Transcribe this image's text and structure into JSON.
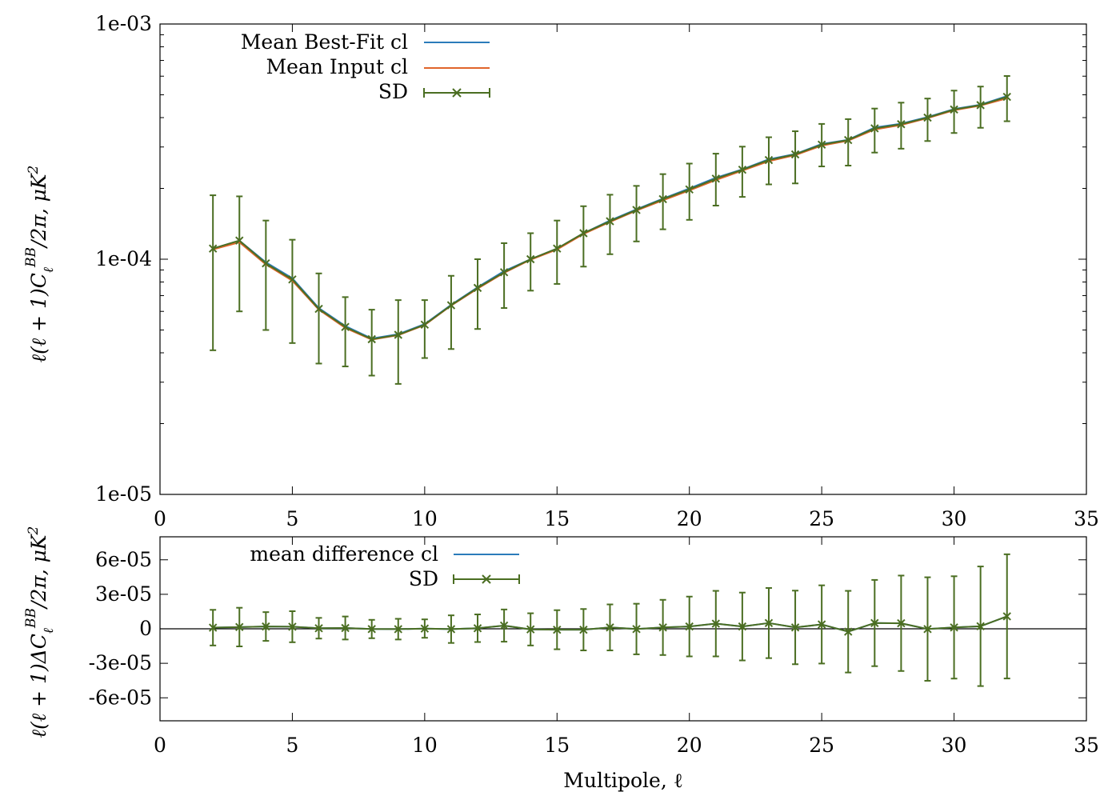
{
  "chart_data": [
    {
      "type": "line",
      "log_y": true,
      "xlim": [
        0,
        35
      ],
      "ylim": [
        1e-05,
        0.001
      ],
      "x_ticks": [
        0,
        5,
        10,
        15,
        20,
        25,
        30,
        35
      ],
      "x_tick_labels": [
        "0",
        "5",
        "10",
        "15",
        "20",
        "25",
        "30",
        "35"
      ],
      "y_ticks": [
        1e-05,
        0.0001,
        0.001
      ],
      "y_tick_labels": [
        "1e-05",
        "1e-04",
        "1e-03"
      ],
      "ylabel": "ℓ(ℓ+1)C_ℓ^BB/2π, μK²",
      "legend_position": "top-left",
      "grid": false,
      "x": [
        2,
        3,
        4,
        5,
        6,
        7,
        8,
        9,
        10,
        11,
        12,
        13,
        14,
        15,
        16,
        17,
        18,
        19,
        20,
        21,
        22,
        23,
        24,
        25,
        26,
        27,
        28,
        29,
        30,
        31,
        32
      ],
      "series": [
        {
          "name": "Mean Best-Fit cl",
          "color": "#2b7bba",
          "values": [
            0.000111,
            0.00012,
            9.7e-05,
            8.3e-05,
            6.2e-05,
            5.2e-05,
            4.6e-05,
            4.8e-05,
            5.3e-05,
            6.4e-05,
            7.6e-05,
            8.9e-05,
            0.0001,
            0.000111,
            0.000129,
            0.000146,
            0.000163,
            0.000181,
            0.0002,
            0.000222,
            0.000241,
            0.000266,
            0.00028,
            0.000309,
            0.000322,
            0.000363,
            0.000377,
            0.000402,
            0.000435,
            0.000454,
            0.000494
          ]
        },
        {
          "name": "Mean Input cl",
          "color": "#e0652a",
          "values": [
            0.00011,
            0.000118,
            9.5e-05,
            8.1e-05,
            6.1e-05,
            5.1e-05,
            4.55e-05,
            4.75e-05,
            5.25e-05,
            6.35e-05,
            7.5e-05,
            8.75e-05,
            9.95e-05,
            0.00011,
            0.000128,
            0.000144,
            0.000161,
            0.000178,
            0.000196,
            0.000217,
            0.000238,
            0.000261,
            0.000277,
            0.000304,
            0.000319,
            0.000356,
            0.000372,
            0.000398,
            0.00043,
            0.00045,
            0.000483
          ]
        },
        {
          "name": "SD",
          "color": "#4b6e22",
          "marker": "x",
          "values": [
            0.000111,
            0.00012,
            9.6e-05,
            8.2e-05,
            6.15e-05,
            5.15e-05,
            4.57e-05,
            4.77e-05,
            5.27e-05,
            6.37e-05,
            7.55e-05,
            8.8e-05,
            0.0001,
            0.000111,
            0.000129,
            0.000145,
            0.000162,
            0.00018,
            0.000198,
            0.00022,
            0.00024,
            0.000264,
            0.000279,
            0.000307,
            0.000321,
            0.00036,
            0.000375,
            0.0004,
            0.000433,
            0.000452,
            0.00049
          ],
          "lower": [
            4.1e-05,
            6e-05,
            5e-05,
            4.4e-05,
            3.6e-05,
            3.5e-05,
            3.2e-05,
            2.95e-05,
            3.8e-05,
            4.15e-05,
            5.05e-05,
            6.2e-05,
            7.35e-05,
            7.85e-05,
            9.3e-05,
            0.000105,
            0.000119,
            0.000134,
            0.000147,
            0.000169,
            0.000184,
            0.000208,
            0.00021,
            0.000248,
            0.00025,
            0.000284,
            0.000295,
            0.000318,
            0.000344,
            0.000362,
            0.000386
          ],
          "upper": [
            0.000187,
            0.000185,
            0.000146,
            0.000121,
            8.7e-05,
            6.9e-05,
            6.1e-05,
            6.7e-05,
            6.7e-05,
            8.5e-05,
            0.0001,
            0.000117,
            0.000129,
            0.000146,
            0.000168,
            0.000188,
            0.000205,
            0.00023,
            0.000255,
            0.000281,
            0.000301,
            0.00033,
            0.00035,
            0.000376,
            0.000394,
            0.000437,
            0.000463,
            0.000482,
            0.000521,
            0.000542,
            0.000601
          ]
        }
      ]
    },
    {
      "type": "line",
      "log_y": false,
      "xlim": [
        0,
        35
      ],
      "ylim": [
        -8e-05,
        8e-05
      ],
      "x_ticks": [
        0,
        5,
        10,
        15,
        20,
        25,
        30,
        35
      ],
      "x_tick_labels": [
        "0",
        "5",
        "10",
        "15",
        "20",
        "25",
        "30",
        "35"
      ],
      "y_ticks": [
        6e-05,
        3e-05,
        0,
        -3e-05,
        -6e-05
      ],
      "y_tick_labels": [
        "6e-05",
        "3e-05",
        "0",
        "-3e-05",
        "-6e-05"
      ],
      "xlabel": "Multipole, ℓ",
      "ylabel": "ℓ(ℓ+1)ΔC_ℓ^BB/2π, μK²",
      "zero_line": true,
      "legend_position": "top-left",
      "grid": false,
      "x": [
        2,
        3,
        4,
        5,
        6,
        7,
        8,
        9,
        10,
        11,
        12,
        13,
        14,
        15,
        16,
        17,
        18,
        19,
        20,
        21,
        22,
        23,
        24,
        25,
        26,
        27,
        28,
        29,
        30,
        31,
        32
      ],
      "series": [
        {
          "name": "mean difference cl",
          "color": "#2b7bba",
          "values": [
            1e-06,
            1.5e-06,
            2e-06,
            1.8e-06,
            5e-07,
            7e-07,
            -2e-07,
            -3e-07,
            2e-07,
            -3e-07,
            5e-07,
            2.8e-06,
            -5e-07,
            -8e-07,
            -8e-07,
            1.2e-06,
            -2e-07,
            1.2e-06,
            2e-06,
            4.5e-06,
            2e-06,
            5e-06,
            1.2e-06,
            3.8e-06,
            -2.5e-06,
            5e-06,
            4.8e-06,
            -2e-07,
            1.2e-06,
            2.2e-06,
            1.08e-05
          ]
        },
        {
          "name": "SD",
          "color": "#4b6e22",
          "marker": "x",
          "values": [
            1e-06,
            1.5e-06,
            2e-06,
            1.8e-06,
            5e-07,
            7e-07,
            -2e-07,
            -3e-07,
            2e-07,
            -3e-07,
            5e-07,
            2.8e-06,
            -5e-07,
            -8e-07,
            -8e-07,
            1.2e-06,
            -2e-07,
            1.2e-06,
            2e-06,
            4.5e-06,
            2e-06,
            5e-06,
            1.2e-06,
            3.8e-06,
            -2.5e-06,
            5e-06,
            4.8e-06,
            -2e-07,
            1.2e-06,
            2.2e-06,
            1.08e-05
          ],
          "error": [
            1.55e-05,
            1.68e-05,
            1.25e-05,
            1.35e-05,
            9e-06,
            1e-05,
            8e-06,
            9e-06,
            8e-06,
            1.2e-05,
            1.2e-05,
            1.4e-05,
            1.4e-05,
            1.7e-05,
            1.8e-05,
            2e-05,
            2.2e-05,
            2.4e-05,
            2.6e-05,
            2.85e-05,
            2.95e-05,
            3.05e-05,
            3.2e-05,
            3.4e-05,
            3.55e-05,
            3.75e-05,
            4.15e-05,
            4.5e-05,
            4.45e-05,
            5.2e-05,
            5.4e-05
          ]
        }
      ]
    }
  ]
}
